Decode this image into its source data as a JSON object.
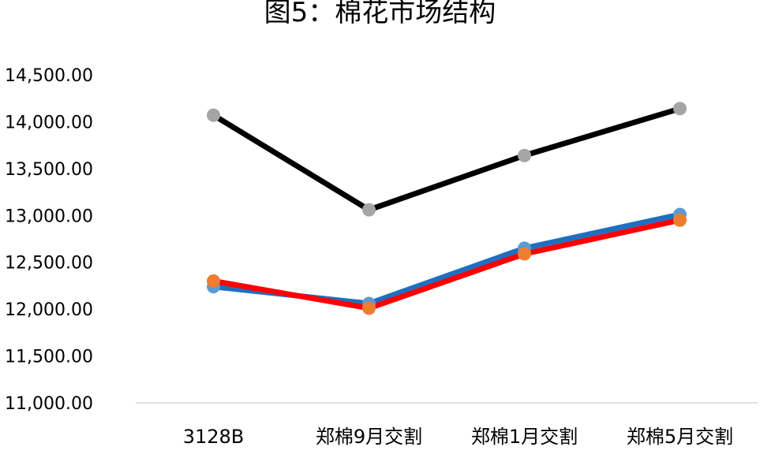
{
  "chart_data": {
    "type": "line",
    "title": "图5：棉花市场结构",
    "categories": [
      "3128B",
      "郑棉9月交割",
      "郑棉1月交割",
      "郑棉5月交割"
    ],
    "ylim": [
      11000,
      14500
    ],
    "yticks": [
      "14,500.00",
      "14,000.00",
      "13,500.00",
      "13,000.00",
      "12,500.00",
      "12,000.00",
      "11,500.00",
      "11,000.00"
    ],
    "ytick_values": [
      14500,
      14000,
      13500,
      13000,
      12500,
      12000,
      11500,
      11000
    ],
    "grid": false,
    "legend": "none",
    "series": [
      {
        "values": [
          12240,
          12060,
          12650,
          13010
        ],
        "line_color": "#1f6fc1",
        "marker_color": "#5b9bd5"
      },
      {
        "values": [
          12300,
          12010,
          12590,
          12950
        ],
        "line_color": "#ff0000",
        "marker_color": "#ed7d31"
      },
      {
        "values": [
          14070,
          13060,
          13640,
          14140
        ],
        "line_color": "#000000",
        "marker_color": "#a5a5a5"
      }
    ]
  }
}
